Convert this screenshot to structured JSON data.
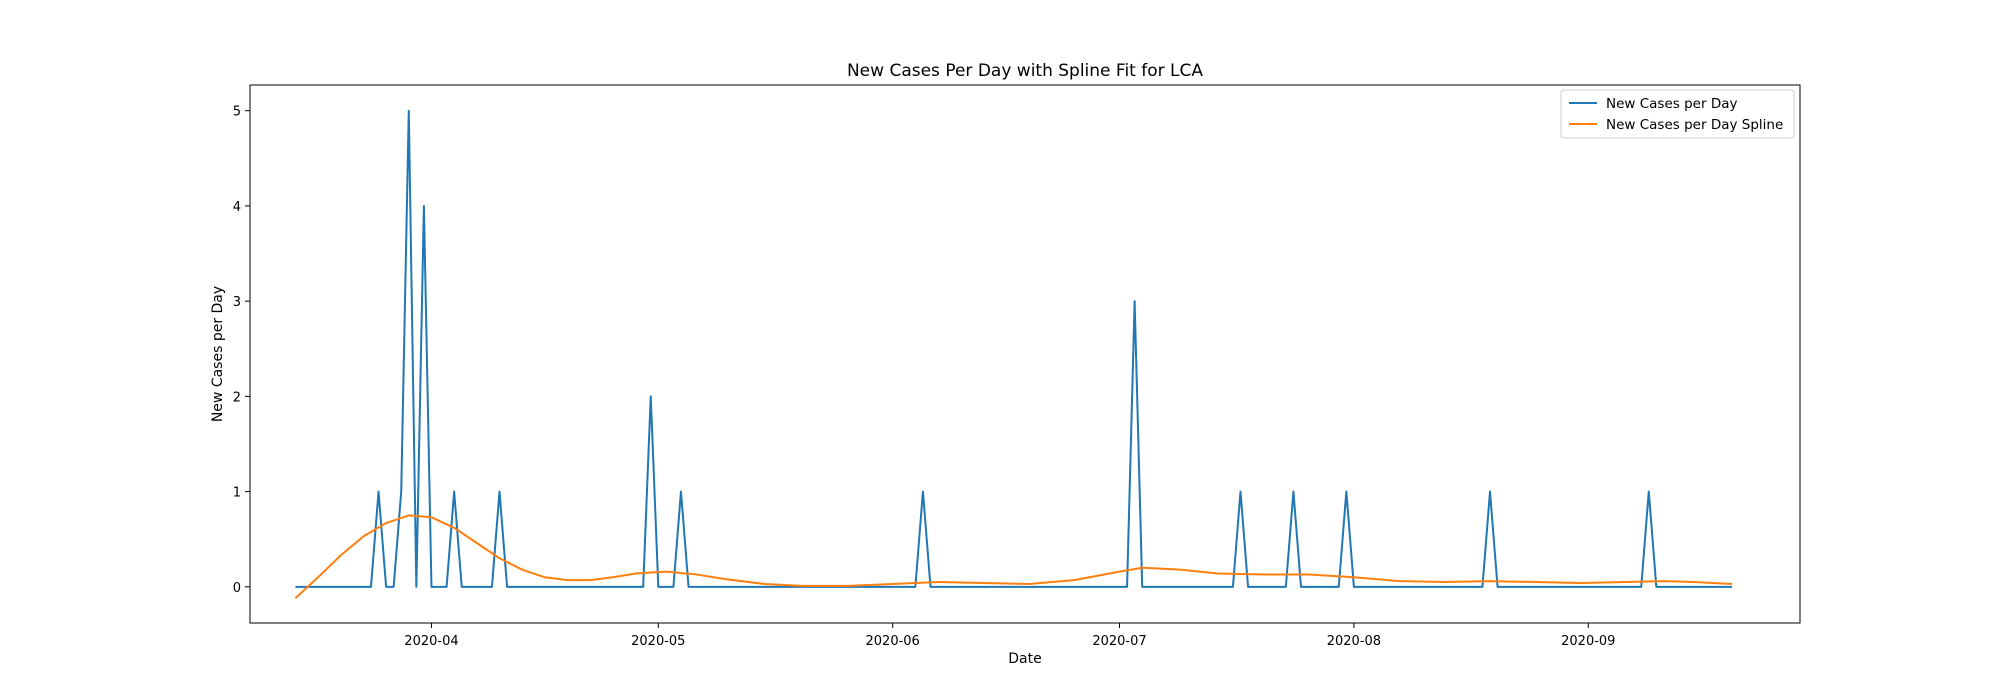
{
  "chart_data": {
    "type": "line",
    "title": "New Cases Per Day with Spline Fit for LCA",
    "xlabel": "Date",
    "ylabel": "New Cases per Day",
    "xlim": [
      "2020-03-08",
      "2020-09-29"
    ],
    "ylim": [
      -0.38,
      5.27
    ],
    "yticks": [
      0,
      1,
      2,
      3,
      4,
      5
    ],
    "xticks": [
      "2020-04",
      "2020-05",
      "2020-06",
      "2020-07",
      "2020-08",
      "2020-09"
    ],
    "grid": false,
    "legend_position": "top-right",
    "colors": {
      "cases": "#1f77b4",
      "spline": "#ff7f0e"
    },
    "series": [
      {
        "name": "New Cases per Day",
        "points": [
          [
            "2020-03-14",
            0
          ],
          [
            "2020-03-24",
            0
          ],
          [
            "2020-03-25",
            1
          ],
          [
            "2020-03-26",
            0
          ],
          [
            "2020-03-27",
            0
          ],
          [
            "2020-03-28",
            1
          ],
          [
            "2020-03-29",
            5
          ],
          [
            "2020-03-30",
            0
          ],
          [
            "2020-03-31",
            4
          ],
          [
            "2020-04-01",
            0
          ],
          [
            "2020-04-03",
            0
          ],
          [
            "2020-04-04",
            1
          ],
          [
            "2020-04-05",
            0
          ],
          [
            "2020-04-09",
            0
          ],
          [
            "2020-04-10",
            1
          ],
          [
            "2020-04-11",
            0
          ],
          [
            "2020-04-29",
            0
          ],
          [
            "2020-04-30",
            2
          ],
          [
            "2020-05-01",
            0
          ],
          [
            "2020-05-03",
            0
          ],
          [
            "2020-05-04",
            1
          ],
          [
            "2020-05-05",
            0
          ],
          [
            "2020-06-04",
            0
          ],
          [
            "2020-06-05",
            1
          ],
          [
            "2020-06-06",
            0
          ],
          [
            "2020-07-02",
            0
          ],
          [
            "2020-07-03",
            3
          ],
          [
            "2020-07-04",
            0
          ],
          [
            "2020-07-16",
            0
          ],
          [
            "2020-07-17",
            1
          ],
          [
            "2020-07-18",
            0
          ],
          [
            "2020-07-23",
            0
          ],
          [
            "2020-07-24",
            1
          ],
          [
            "2020-07-25",
            0
          ],
          [
            "2020-07-30",
            0
          ],
          [
            "2020-07-31",
            1
          ],
          [
            "2020-08-01",
            0
          ],
          [
            "2020-08-18",
            0
          ],
          [
            "2020-08-19",
            1
          ],
          [
            "2020-08-20",
            0
          ],
          [
            "2020-09-08",
            0
          ],
          [
            "2020-09-09",
            1
          ],
          [
            "2020-09-10",
            0
          ],
          [
            "2020-09-20",
            0
          ]
        ]
      },
      {
        "name": "New Cases per Day Spline",
        "points": [
          [
            "2020-03-14",
            -0.12
          ],
          [
            "2020-03-17",
            0.1
          ],
          [
            "2020-03-20",
            0.33
          ],
          [
            "2020-03-23",
            0.53
          ],
          [
            "2020-03-26",
            0.67
          ],
          [
            "2020-03-29",
            0.75
          ],
          [
            "2020-04-01",
            0.73
          ],
          [
            "2020-04-04",
            0.62
          ],
          [
            "2020-04-07",
            0.46
          ],
          [
            "2020-04-10",
            0.3
          ],
          [
            "2020-04-13",
            0.18
          ],
          [
            "2020-04-16",
            0.1
          ],
          [
            "2020-04-19",
            0.07
          ],
          [
            "2020-04-22",
            0.07
          ],
          [
            "2020-04-25",
            0.1
          ],
          [
            "2020-04-28",
            0.14
          ],
          [
            "2020-05-02",
            0.16
          ],
          [
            "2020-05-06",
            0.13
          ],
          [
            "2020-05-10",
            0.08
          ],
          [
            "2020-05-15",
            0.03
          ],
          [
            "2020-05-20",
            0.01
          ],
          [
            "2020-05-26",
            0.01
          ],
          [
            "2020-06-01",
            0.03
          ],
          [
            "2020-06-07",
            0.05
          ],
          [
            "2020-06-13",
            0.04
          ],
          [
            "2020-06-19",
            0.03
          ],
          [
            "2020-06-25",
            0.07
          ],
          [
            "2020-07-01",
            0.16
          ],
          [
            "2020-07-04",
            0.2
          ],
          [
            "2020-07-09",
            0.18
          ],
          [
            "2020-07-14",
            0.14
          ],
          [
            "2020-07-20",
            0.13
          ],
          [
            "2020-07-26",
            0.13
          ],
          [
            "2020-08-01",
            0.1
          ],
          [
            "2020-08-07",
            0.06
          ],
          [
            "2020-08-13",
            0.05
          ],
          [
            "2020-08-19",
            0.06
          ],
          [
            "2020-08-25",
            0.05
          ],
          [
            "2020-08-31",
            0.04
          ],
          [
            "2020-09-06",
            0.05
          ],
          [
            "2020-09-11",
            0.06
          ],
          [
            "2020-09-15",
            0.05
          ],
          [
            "2020-09-20",
            0.03
          ]
        ]
      }
    ]
  }
}
